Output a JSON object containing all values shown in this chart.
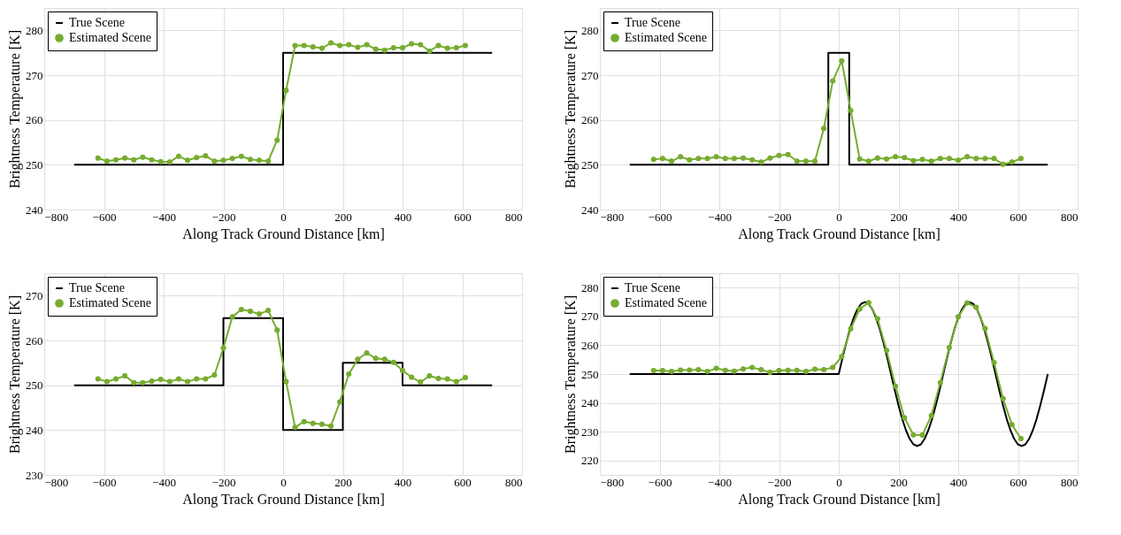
{
  "chart_data": [
    {
      "type": "line",
      "xlabel": "Along Track Ground Distance [km]",
      "ylabel": "Brightness Temperature [K]",
      "xlim": [
        -800,
        800
      ],
      "xticks": [
        -800,
        -600,
        -400,
        -200,
        0,
        200,
        400,
        600,
        800
      ],
      "ylim": [
        240,
        285
      ],
      "yticks": [
        240,
        250,
        260,
        270,
        280
      ],
      "grid": true,
      "legend": "top left",
      "series": [
        {
          "name": "True Scene",
          "color": "#000000",
          "marker": "none",
          "x": [
            -700,
            0,
            0,
            700
          ],
          "values": [
            250,
            250,
            275,
            275
          ]
        },
        {
          "name": "Estimated Scene",
          "color": "#77ac30",
          "marker": "circle",
          "x": [
            -620,
            -590,
            -560,
            -530,
            -500,
            -470,
            -440,
            -410,
            -380,
            -350,
            -320,
            -290,
            -260,
            -230,
            -200,
            -170,
            -140,
            -110,
            -80,
            -50,
            -20,
            10,
            40,
            70,
            100,
            130,
            160,
            190,
            220,
            250,
            280,
            310,
            340,
            370,
            400,
            430,
            460,
            490,
            520,
            550,
            580,
            610
          ],
          "values": [
            251.5,
            250.8,
            251.1,
            251.5,
            251.1,
            251.7,
            251.1,
            250.7,
            250.6,
            251.9,
            251.0,
            251.6,
            252.0,
            250.8,
            251.0,
            251.4,
            251.9,
            251.2,
            251.0,
            250.8,
            255.5,
            266.6,
            276.6,
            276.6,
            276.3,
            276.0,
            277.2,
            276.6,
            276.8,
            276.2,
            276.8,
            275.8,
            275.6,
            276.1,
            276.1,
            277.0,
            276.8,
            275.4,
            276.6,
            276.0,
            276.1,
            276.6
          ]
        }
      ]
    },
    {
      "type": "line",
      "xlabel": "Along Track Ground Distance [km]",
      "ylabel": "Brightness Temperature [K]",
      "xlim": [
        -800,
        800
      ],
      "xticks": [
        -800,
        -600,
        -400,
        -200,
        0,
        200,
        400,
        600,
        800
      ],
      "ylim": [
        240,
        285
      ],
      "yticks": [
        240,
        250,
        260,
        270,
        280
      ],
      "grid": true,
      "legend": "top left",
      "series": [
        {
          "name": "True Scene",
          "color": "#000000",
          "marker": "none",
          "x": [
            -700,
            -35,
            -35,
            35,
            35,
            700
          ],
          "values": [
            250,
            250,
            275,
            275,
            250,
            250
          ]
        },
        {
          "name": "Estimated Scene",
          "color": "#77ac30",
          "marker": "circle",
          "x": [
            -620,
            -590,
            -560,
            -530,
            -500,
            -470,
            -440,
            -410,
            -380,
            -350,
            -320,
            -290,
            -260,
            -230,
            -200,
            -170,
            -140,
            -110,
            -80,
            -50,
            -20,
            10,
            40,
            70,
            100,
            130,
            160,
            190,
            220,
            250,
            280,
            310,
            340,
            370,
            400,
            430,
            460,
            490,
            520,
            550,
            580,
            610
          ],
          "values": [
            251.2,
            251.4,
            250.8,
            251.8,
            251.1,
            251.4,
            251.4,
            251.8,
            251.4,
            251.4,
            251.5,
            251.1,
            250.6,
            251.5,
            252.1,
            252.3,
            250.8,
            250.8,
            250.8,
            258.1,
            268.7,
            273.2,
            262.1,
            251.3,
            250.8,
            251.5,
            251.3,
            251.8,
            251.6,
            250.9,
            251.2,
            250.8,
            251.4,
            251.4,
            251.0,
            251.8,
            251.4,
            251.4,
            251.4,
            250.1,
            250.6,
            251.4
          ]
        }
      ]
    },
    {
      "type": "line",
      "xlabel": "Along Track Ground Distance [km]",
      "ylabel": "Brightness Temperature [K]",
      "xlim": [
        -800,
        800
      ],
      "xticks": [
        -800,
        -600,
        -400,
        -200,
        0,
        200,
        400,
        600,
        800
      ],
      "ylim": [
        230,
        275
      ],
      "yticks": [
        230,
        240,
        250,
        260,
        270
      ],
      "grid": true,
      "legend": "top left",
      "series": [
        {
          "name": "True Scene",
          "color": "#000000",
          "marker": "none",
          "x": [
            -700,
            -200,
            -200,
            0,
            0,
            200,
            200,
            400,
            400,
            700
          ],
          "values": [
            250,
            250,
            265,
            265,
            240,
            240,
            255,
            255,
            250,
            250
          ]
        },
        {
          "name": "Estimated Scene",
          "color": "#77ac30",
          "marker": "circle",
          "x": [
            -620,
            -590,
            -560,
            -530,
            -500,
            -470,
            -440,
            -410,
            -380,
            -350,
            -320,
            -290,
            -260,
            -230,
            -200,
            -170,
            -140,
            -110,
            -80,
            -50,
            -20,
            10,
            40,
            70,
            100,
            130,
            160,
            190,
            220,
            250,
            280,
            310,
            340,
            370,
            400,
            430,
            460,
            490,
            520,
            550,
            580,
            610
          ],
          "values": [
            251.4,
            250.8,
            251.4,
            252.1,
            250.6,
            250.6,
            250.9,
            251.3,
            250.8,
            251.4,
            250.8,
            251.4,
            251.4,
            252.3,
            258.3,
            265.3,
            266.9,
            266.5,
            265.9,
            266.7,
            262.3,
            250.8,
            240.6,
            241.9,
            241.5,
            241.3,
            240.9,
            246.3,
            252.5,
            255.8,
            257.2,
            256.0,
            255.8,
            255.1,
            253.3,
            251.8,
            250.7,
            252.1,
            251.5,
            251.4,
            250.8,
            251.7
          ]
        }
      ]
    },
    {
      "type": "line",
      "xlabel": "Along Track Ground Distance [km]",
      "ylabel": "Brightness Temperature [K]",
      "xlim": [
        -800,
        800
      ],
      "xticks": [
        -800,
        -600,
        -400,
        -200,
        0,
        200,
        400,
        600,
        800
      ],
      "ylim": [
        215,
        285
      ],
      "yticks": [
        220,
        230,
        240,
        250,
        260,
        270,
        280
      ],
      "grid": true,
      "legend": "top left",
      "series": [
        {
          "name": "True Scene",
          "color": "#000000",
          "marker": "none",
          "x": [
            -700,
            0,
            12.5,
            25,
            37.5,
            50,
            62.5,
            75,
            87.5,
            100,
            112.5,
            125,
            137.5,
            150,
            162.5,
            175,
            187.5,
            200,
            212.5,
            225,
            237.5,
            250,
            262.5,
            275,
            287.5,
            300,
            312.5,
            325,
            337.5,
            350,
            362.5,
            375,
            387.5,
            400,
            412.5,
            425,
            437.5,
            450,
            462.5,
            475,
            487.5,
            500,
            512.5,
            525,
            537.5,
            550,
            562.5,
            575,
            587.5,
            600,
            612.5,
            625,
            637.5,
            650,
            662.5,
            675,
            687.5,
            700
          ],
          "values": [
            250,
            250,
            255.6,
            260.8,
            265.6,
            269.5,
            272.5,
            274.4,
            275,
            274.4,
            272.5,
            269.5,
            265.6,
            260.8,
            255.6,
            250,
            244.4,
            239.2,
            234.4,
            230.5,
            227.5,
            225.6,
            225,
            225.6,
            227.5,
            230.5,
            234.4,
            239.2,
            244.4,
            250,
            255.6,
            260.8,
            265.6,
            269.5,
            272.5,
            274.4,
            275,
            274.4,
            272.5,
            269.5,
            265.6,
            260.8,
            255.6,
            250,
            244.4,
            239.2,
            234.4,
            230.5,
            227.5,
            225.6,
            225,
            225.6,
            227.5,
            230.5,
            234.4,
            239.2,
            244.4,
            250
          ]
        },
        {
          "name": "Estimated Scene",
          "color": "#77ac30",
          "marker": "circle",
          "x": [
            -620,
            -590,
            -560,
            -530,
            -500,
            -470,
            -440,
            -410,
            -380,
            -350,
            -320,
            -290,
            -260,
            -230,
            -200,
            -170,
            -140,
            -110,
            -80,
            -50,
            -20,
            10,
            40,
            70,
            100,
            130,
            160,
            190,
            220,
            250,
            280,
            310,
            340,
            370,
            400,
            430,
            460,
            490,
            520,
            550,
            580,
            610
          ],
          "values": [
            251.2,
            251.2,
            250.9,
            251.4,
            251.4,
            251.5,
            250.9,
            252.0,
            251.3,
            251.0,
            251.8,
            252.3,
            251.5,
            250.6,
            251.2,
            251.3,
            251.3,
            250.9,
            251.7,
            251.5,
            252.3,
            256.1,
            265.7,
            272.6,
            274.8,
            269.2,
            258.2,
            245.8,
            234.8,
            228.9,
            228.8,
            235.6,
            247.0,
            259.2,
            269.9,
            274.7,
            273.2,
            265.8,
            254.0,
            241.5,
            232.4,
            227.6
          ]
        }
      ]
    }
  ]
}
